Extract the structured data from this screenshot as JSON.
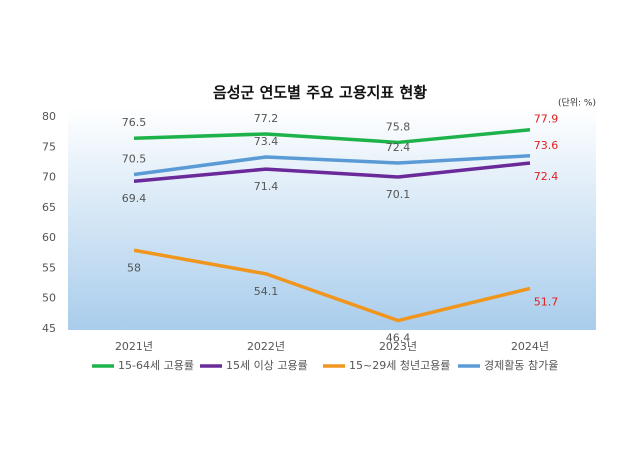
{
  "chart_data": {
    "type": "line",
    "title": "음성군 연도별 주요 고용지표 현황",
    "unit_note": "(단위: %)",
    "categories": [
      "2021년",
      "2022년",
      "2023년",
      "2024년"
    ],
    "series": [
      {
        "name": "15-64세 고용률",
        "color": "#1db34a",
        "values": [
          76.5,
          77.2,
          75.8,
          77.9
        ]
      },
      {
        "name": "15세 이상 고용률",
        "color": "#6a2a9a",
        "values": [
          69.4,
          71.4,
          70.1,
          72.4
        ]
      },
      {
        "name": "15~29세 청년고용률",
        "color": "#f0961e",
        "values": [
          58,
          54.1,
          46.4,
          51.7
        ]
      },
      {
        "name": "경제활동 참가율",
        "color": "#5b9bd5",
        "values": [
          70.5,
          73.4,
          72.4,
          73.6
        ]
      }
    ],
    "ylim": [
      45,
      80
    ],
    "yticks": [
      45,
      50,
      55,
      60,
      65,
      70,
      75,
      80
    ],
    "last_label_color": "#e02020",
    "legend": "bottom"
  }
}
